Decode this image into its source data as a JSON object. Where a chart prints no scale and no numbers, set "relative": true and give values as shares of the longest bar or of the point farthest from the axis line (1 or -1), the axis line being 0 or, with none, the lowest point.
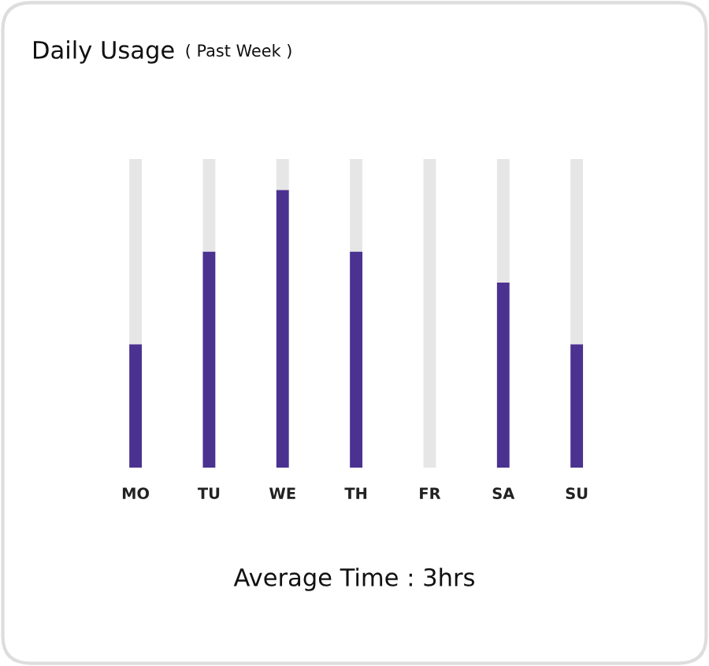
{
  "chart_data": {
    "type": "bar",
    "title": "Daily Usage",
    "subtitle": "( Past Week )",
    "categories": [
      "MO",
      "TU",
      "WE",
      "TH",
      "FR",
      "SA",
      "SU"
    ],
    "relative": true,
    "stacked": true,
    "grid": false,
    "legend": false,
    "series": [
      {
        "color": "#4b3190",
        "values": [
          0.4,
          0.7,
          0.9,
          0.7,
          0,
          0.6,
          0.4
        ]
      },
      {
        "color": "#e6e6e6",
        "values": [
          0.6,
          0.3,
          0.1,
          0.3,
          1,
          0.4,
          0.6
        ]
      }
    ],
    "annotations": [
      "Average Time : 3hrs"
    ]
  }
}
